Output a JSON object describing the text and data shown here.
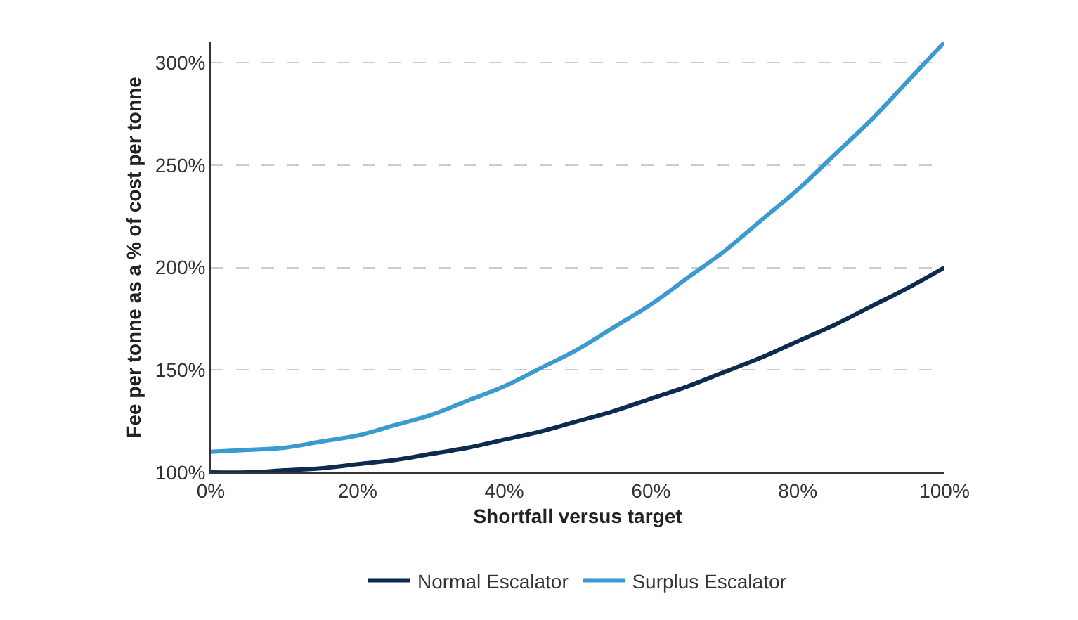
{
  "chart_data": {
    "type": "line",
    "xlabel": "Shortfall versus target",
    "ylabel": "Fee per tonne as a % of cost per tonne",
    "x": [
      0,
      5,
      10,
      15,
      20,
      25,
      30,
      35,
      40,
      45,
      50,
      55,
      60,
      65,
      70,
      75,
      80,
      85,
      90,
      95,
      100
    ],
    "series": [
      {
        "name": "Normal Escalator",
        "color": "#0d2b4e",
        "values": [
          100,
          100,
          101,
          102,
          104,
          106,
          109,
          112,
          116,
          120,
          125,
          130,
          136,
          142,
          149,
          156,
          164,
          172,
          181,
          190,
          200
        ]
      },
      {
        "name": "Surplus Escalator",
        "color": "#3b9bd1",
        "values": [
          110,
          111,
          112,
          115,
          118,
          123,
          128,
          135,
          142,
          151,
          160,
          171,
          182,
          195,
          208,
          223,
          238,
          255,
          272,
          291,
          310
        ]
      }
    ],
    "xlim": [
      0,
      100
    ],
    "xticks": [
      {
        "value": 0,
        "label": "0%"
      },
      {
        "value": 20,
        "label": "20%"
      },
      {
        "value": 40,
        "label": "40%"
      },
      {
        "value": 60,
        "label": "60%"
      },
      {
        "value": 80,
        "label": "80%"
      },
      {
        "value": 100,
        "label": "100%"
      }
    ],
    "ylim": [
      100,
      310
    ],
    "yticks": [
      {
        "value": 100,
        "label": "100%"
      },
      {
        "value": 150,
        "label": "150%"
      },
      {
        "value": 200,
        "label": "200%"
      },
      {
        "value": 250,
        "label": "250%"
      },
      {
        "value": 300,
        "label": "300%"
      }
    ],
    "grid": "y",
    "legend": "bottom",
    "marker": "none",
    "line_style": "solid"
  }
}
